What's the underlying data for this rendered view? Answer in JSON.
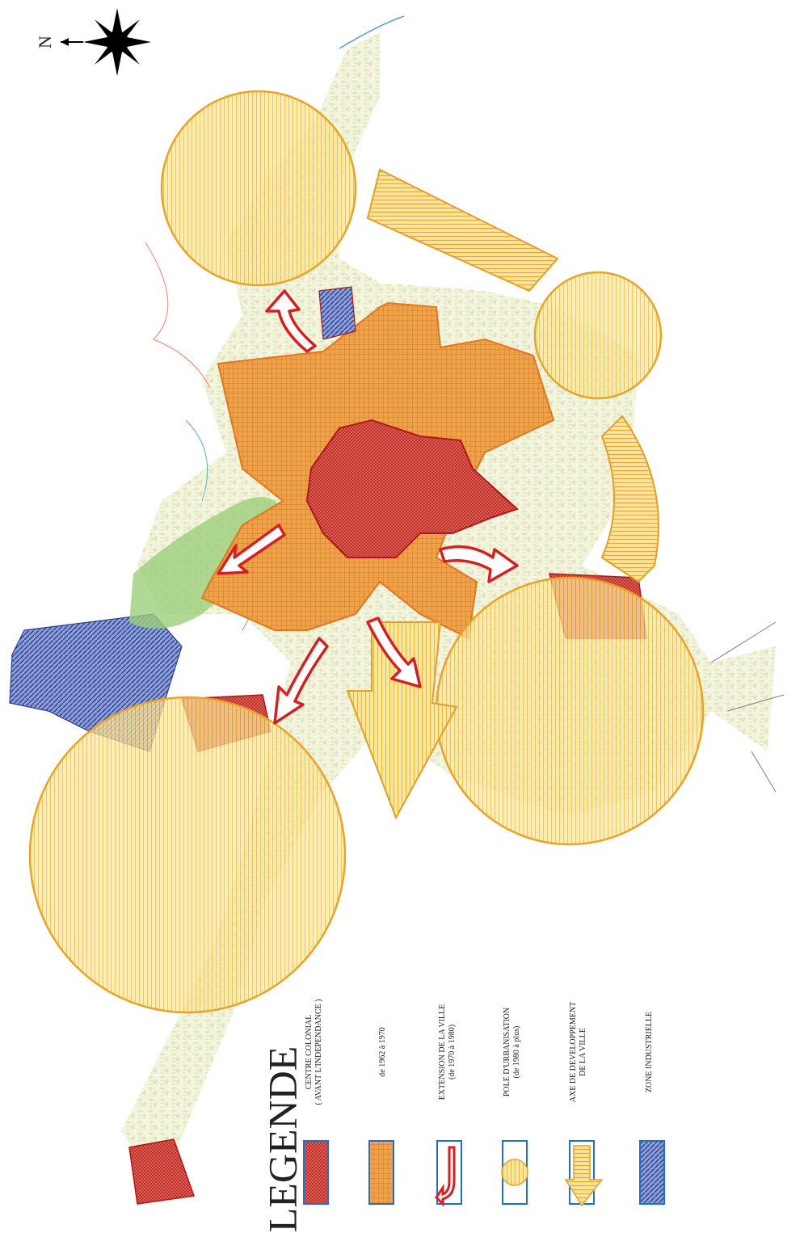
{
  "compass": {
    "north_label": "N",
    "icon": "compass-rose-icon"
  },
  "legend": {
    "title": "LEGENDE",
    "items": [
      {
        "id": "colonial",
        "label_line1": "CENTRE COLONIAL",
        "label_line2": "( AVANT L'INDEPENDANCE )",
        "color": "#cc2a2a",
        "icon": "red-hatched-swatch-icon"
      },
      {
        "id": "1962-1970",
        "label_line1": "de 1962 à 1970",
        "label_line2": "",
        "color": "#e08a2c",
        "icon": "orange-grid-swatch-icon"
      },
      {
        "id": "extension",
        "label_line1": "EXTENSION DE LA VILLE",
        "label_line2": "(de 1970 à 1980)",
        "color": "#d42020",
        "icon": "red-arrow-swatch-icon"
      },
      {
        "id": "pole",
        "label_line1": "POLE D'URBANISATION",
        "label_line2": "(de 1980 à plus)",
        "color": "#f0c24a",
        "icon": "yellow-circle-swatch-icon"
      },
      {
        "id": "axe",
        "label_line1": "AXE DE DEVELOPPEMENT",
        "label_line2": "DE LA VILLE",
        "color": "#f2b632",
        "icon": "yellow-arrow-swatch-icon"
      },
      {
        "id": "industrial",
        "label_line1": "ZONE INDUSTRIELLE",
        "label_line2": "",
        "color": "#3a4da0",
        "icon": "blue-hatched-swatch-icon"
      }
    ]
  },
  "colors": {
    "pole_fill": "#f7d86a",
    "pole_stroke": "#e8a42a",
    "colonial": "#cc2a2a",
    "period_1962_1970": "#e08a2c",
    "industrial": "#3a4da0",
    "arrow_red": "#d42020",
    "frame_blue": "#1e6fd0"
  }
}
